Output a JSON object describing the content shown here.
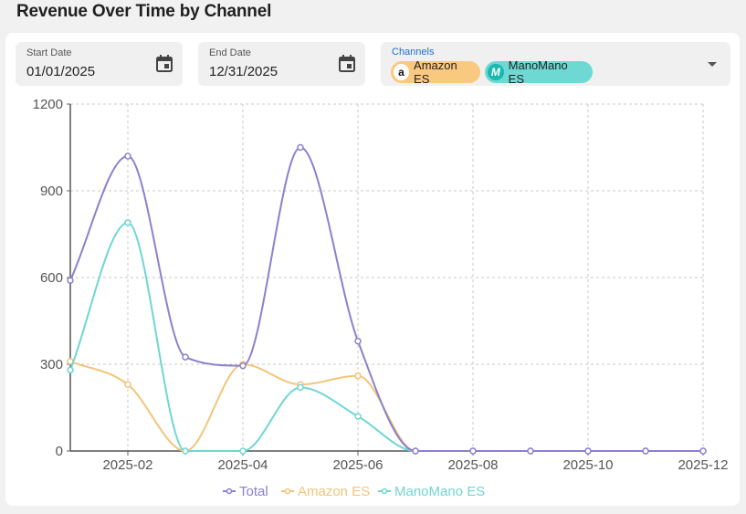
{
  "title": "Revenue Over Time by Channel",
  "filters": {
    "start": {
      "label": "Start Date",
      "value": "01/01/2025"
    },
    "end": {
      "label": "End Date",
      "value": "12/31/2025"
    },
    "channels": {
      "label": "Channels",
      "chips": [
        "Amazon ES",
        "ManoMano ES"
      ]
    }
  },
  "colors": {
    "Total": "#8b80cf",
    "Amazon ES": "#f3c47a",
    "ManoMano ES": "#6fd6d2",
    "amazon_chip": "#f9c97f",
    "manomano_chip": "#6ed8d3"
  },
  "icons": [
    "calendar-icon",
    "amazon-logo-icon",
    "manomano-logo-icon",
    "chevron-down-icon"
  ],
  "chart_data": {
    "type": "line",
    "x": [
      "2025-01",
      "2025-02",
      "2025-03",
      "2025-04",
      "2025-05",
      "2025-06",
      "2025-07",
      "2025-08",
      "2025-09",
      "2025-10",
      "2025-11",
      "2025-12"
    ],
    "x_ticks": [
      "2025-02",
      "2025-04",
      "2025-06",
      "2025-08",
      "2025-10",
      "2025-12"
    ],
    "y_ticks": [
      "0",
      "300",
      "600",
      "900",
      "1200"
    ],
    "ylim": [
      0,
      1200
    ],
    "grid": true,
    "legend": "bottom",
    "series": [
      {
        "name": "Total",
        "values": [
          590,
          1020,
          325,
          295,
          1050,
          380,
          0,
          0,
          0,
          0,
          0,
          0
        ]
      },
      {
        "name": "Amazon ES",
        "values": [
          310,
          230,
          0,
          300,
          230,
          260,
          0,
          0,
          0,
          0,
          0,
          0
        ]
      },
      {
        "name": "ManoMano ES",
        "values": [
          280,
          790,
          0,
          0,
          220,
          120,
          0,
          0,
          0,
          0,
          0,
          0
        ]
      }
    ]
  }
}
